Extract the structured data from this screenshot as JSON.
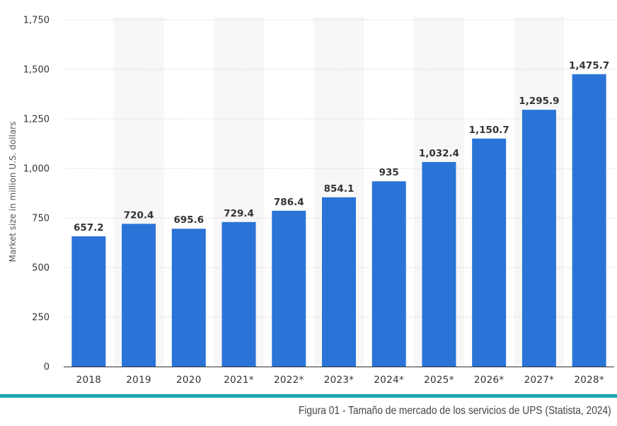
{
  "chart_data": {
    "type": "bar",
    "categories": [
      "2018",
      "2019",
      "2020",
      "2021*",
      "2022*",
      "2023*",
      "2024*",
      "2025*",
      "2026*",
      "2027*",
      "2028*"
    ],
    "values": [
      657.2,
      720.4,
      695.6,
      729.4,
      786.4,
      854.1,
      935,
      1032.4,
      1150.7,
      1295.9,
      1475.7
    ],
    "value_labels": [
      "657.2",
      "720.4",
      "695.6",
      "729.4",
      "786.4",
      "854.1",
      "935",
      "1,032.4",
      "1,150.7",
      "1,295.9",
      "1,475.7"
    ],
    "title": "",
    "xlabel": "",
    "ylabel": "Market size in million U.S. dollars",
    "ylim": [
      0,
      1750
    ],
    "yticks": [
      0,
      250,
      500,
      750,
      1000,
      1250,
      1500,
      1750
    ],
    "ytick_labels": [
      "0",
      "250",
      "500",
      "750",
      "1,000",
      "1,250",
      "1,500",
      "1,750"
    ],
    "grid": true,
    "bar_color": "#2a74d8"
  },
  "caption": "Figura 01 - Tamaño de mercado de los servicios de UPS (Statista, 2024)",
  "accent_color": "#1aa7b0"
}
